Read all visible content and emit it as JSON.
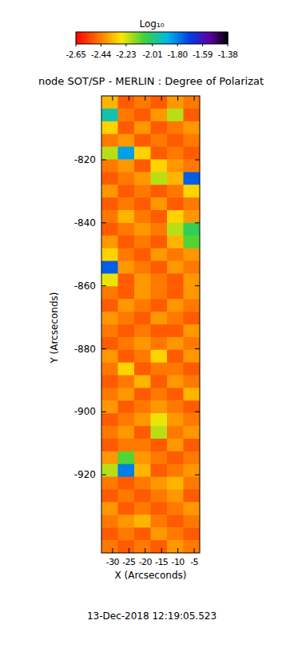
{
  "chart_data": {
    "type": "heatmap",
    "title": "node SOT/SP - MERLIN : Degree of Polarizat",
    "x_label": "X (Arcseconds)",
    "y_label": "Y (Arcseconds)",
    "xlim": [
      -33.4,
      -3.3
    ],
    "ylim": [
      -944.8,
      -799.7
    ],
    "xticks": [
      -30,
      -25,
      -20,
      -15,
      -10,
      -5
    ],
    "yticks": [
      -820,
      -840,
      -860,
      -880,
      -900,
      -920
    ],
    "z": [
      [
        -2.35,
        -2.5,
        -2.45,
        -2.5,
        -2.4,
        -2.45
      ],
      [
        -1.95,
        -2.45,
        -2.5,
        -2.4,
        -2.2,
        -2.5
      ],
      [
        -2.3,
        -2.5,
        -2.4,
        -2.5,
        -2.45,
        -2.4
      ],
      [
        -2.45,
        -2.4,
        -2.5,
        -2.45,
        -2.5,
        -2.45
      ],
      [
        -2.2,
        -1.85,
        -2.3,
        -2.5,
        -2.45,
        -2.5
      ],
      [
        -2.45,
        -2.4,
        -2.5,
        -2.3,
        -2.4,
        -2.45
      ],
      [
        -2.5,
        -2.45,
        -2.4,
        -2.2,
        -2.35,
        -1.75
      ],
      [
        -2.4,
        -2.5,
        -2.45,
        -2.5,
        -2.45,
        -2.3
      ],
      [
        -2.5,
        -2.45,
        -2.5,
        -2.4,
        -2.5,
        -2.45
      ],
      [
        -2.45,
        -2.35,
        -2.45,
        -2.5,
        -2.3,
        -2.4
      ],
      [
        -2.5,
        -2.45,
        -2.4,
        -2.45,
        -2.2,
        -2.05
      ],
      [
        -2.4,
        -2.5,
        -2.45,
        -2.5,
        -2.35,
        -2.1
      ],
      [
        -2.3,
        -2.45,
        -2.5,
        -2.4,
        -2.45,
        -2.4
      ],
      [
        -1.75,
        -2.4,
        -2.45,
        -2.5,
        -2.4,
        -2.45
      ],
      [
        -2.25,
        -2.5,
        -2.4,
        -2.45,
        -2.5,
        -2.4
      ],
      [
        -2.45,
        -2.5,
        -2.4,
        -2.45,
        -2.5,
        -2.4
      ],
      [
        -2.5,
        -2.4,
        -2.45,
        -2.5,
        -2.4,
        -2.45
      ],
      [
        -2.4,
        -2.45,
        -2.5,
        -2.4,
        -2.45,
        -2.5
      ],
      [
        -2.45,
        -2.5,
        -2.45,
        -2.5,
        -2.5,
        -2.4
      ],
      [
        -2.5,
        -2.45,
        -2.4,
        -2.45,
        -2.4,
        -2.45
      ],
      [
        -2.4,
        -2.5,
        -2.45,
        -2.3,
        -2.5,
        -2.4
      ],
      [
        -2.45,
        -2.3,
        -2.5,
        -2.45,
        -2.45,
        -2.5
      ],
      [
        -2.5,
        -2.45,
        -2.35,
        -2.5,
        -2.4,
        -2.45
      ],
      [
        -2.45,
        -2.4,
        -2.5,
        -2.45,
        -2.5,
        -2.35
      ],
      [
        -2.4,
        -2.5,
        -2.45,
        -2.4,
        -2.45,
        -2.5
      ],
      [
        -2.5,
        -2.45,
        -2.4,
        -2.25,
        -2.4,
        -2.45
      ],
      [
        -2.45,
        -2.4,
        -2.5,
        -2.2,
        -2.45,
        -2.4
      ],
      [
        -2.5,
        -2.45,
        -2.45,
        -2.5,
        -2.4,
        -2.5
      ],
      [
        -2.4,
        -2.1,
        -2.4,
        -2.45,
        -2.5,
        -2.45
      ],
      [
        -2.2,
        -1.8,
        -2.35,
        -2.5,
        -2.45,
        -2.4
      ],
      [
        -2.45,
        -2.5,
        -2.45,
        -2.4,
        -2.35,
        -2.45
      ],
      [
        -2.5,
        -2.45,
        -2.5,
        -2.45,
        -2.4,
        -2.5
      ],
      [
        -2.4,
        -2.5,
        -2.45,
        -2.5,
        -2.45,
        -2.4
      ],
      [
        -2.45,
        -2.4,
        -2.35,
        -2.45,
        -2.5,
        -2.45
      ],
      [
        -2.5,
        -2.45,
        -2.5,
        -2.4,
        -2.45,
        -2.5
      ],
      [
        -2.45,
        -2.5,
        -2.45,
        -2.5,
        -2.4,
        -2.45
      ]
    ],
    "colorbar": {
      "label": "Log₁₀",
      "range": [
        -2.65,
        -1.38
      ],
      "ticks": [
        -2.65,
        -2.44,
        -2.23,
        -2.01,
        {
          "value": -1.8,
          "label": "-1.80"
        },
        -1.59,
        -1.38
      ]
    },
    "footer": "13-Dec-2018 12:19:05.523"
  }
}
